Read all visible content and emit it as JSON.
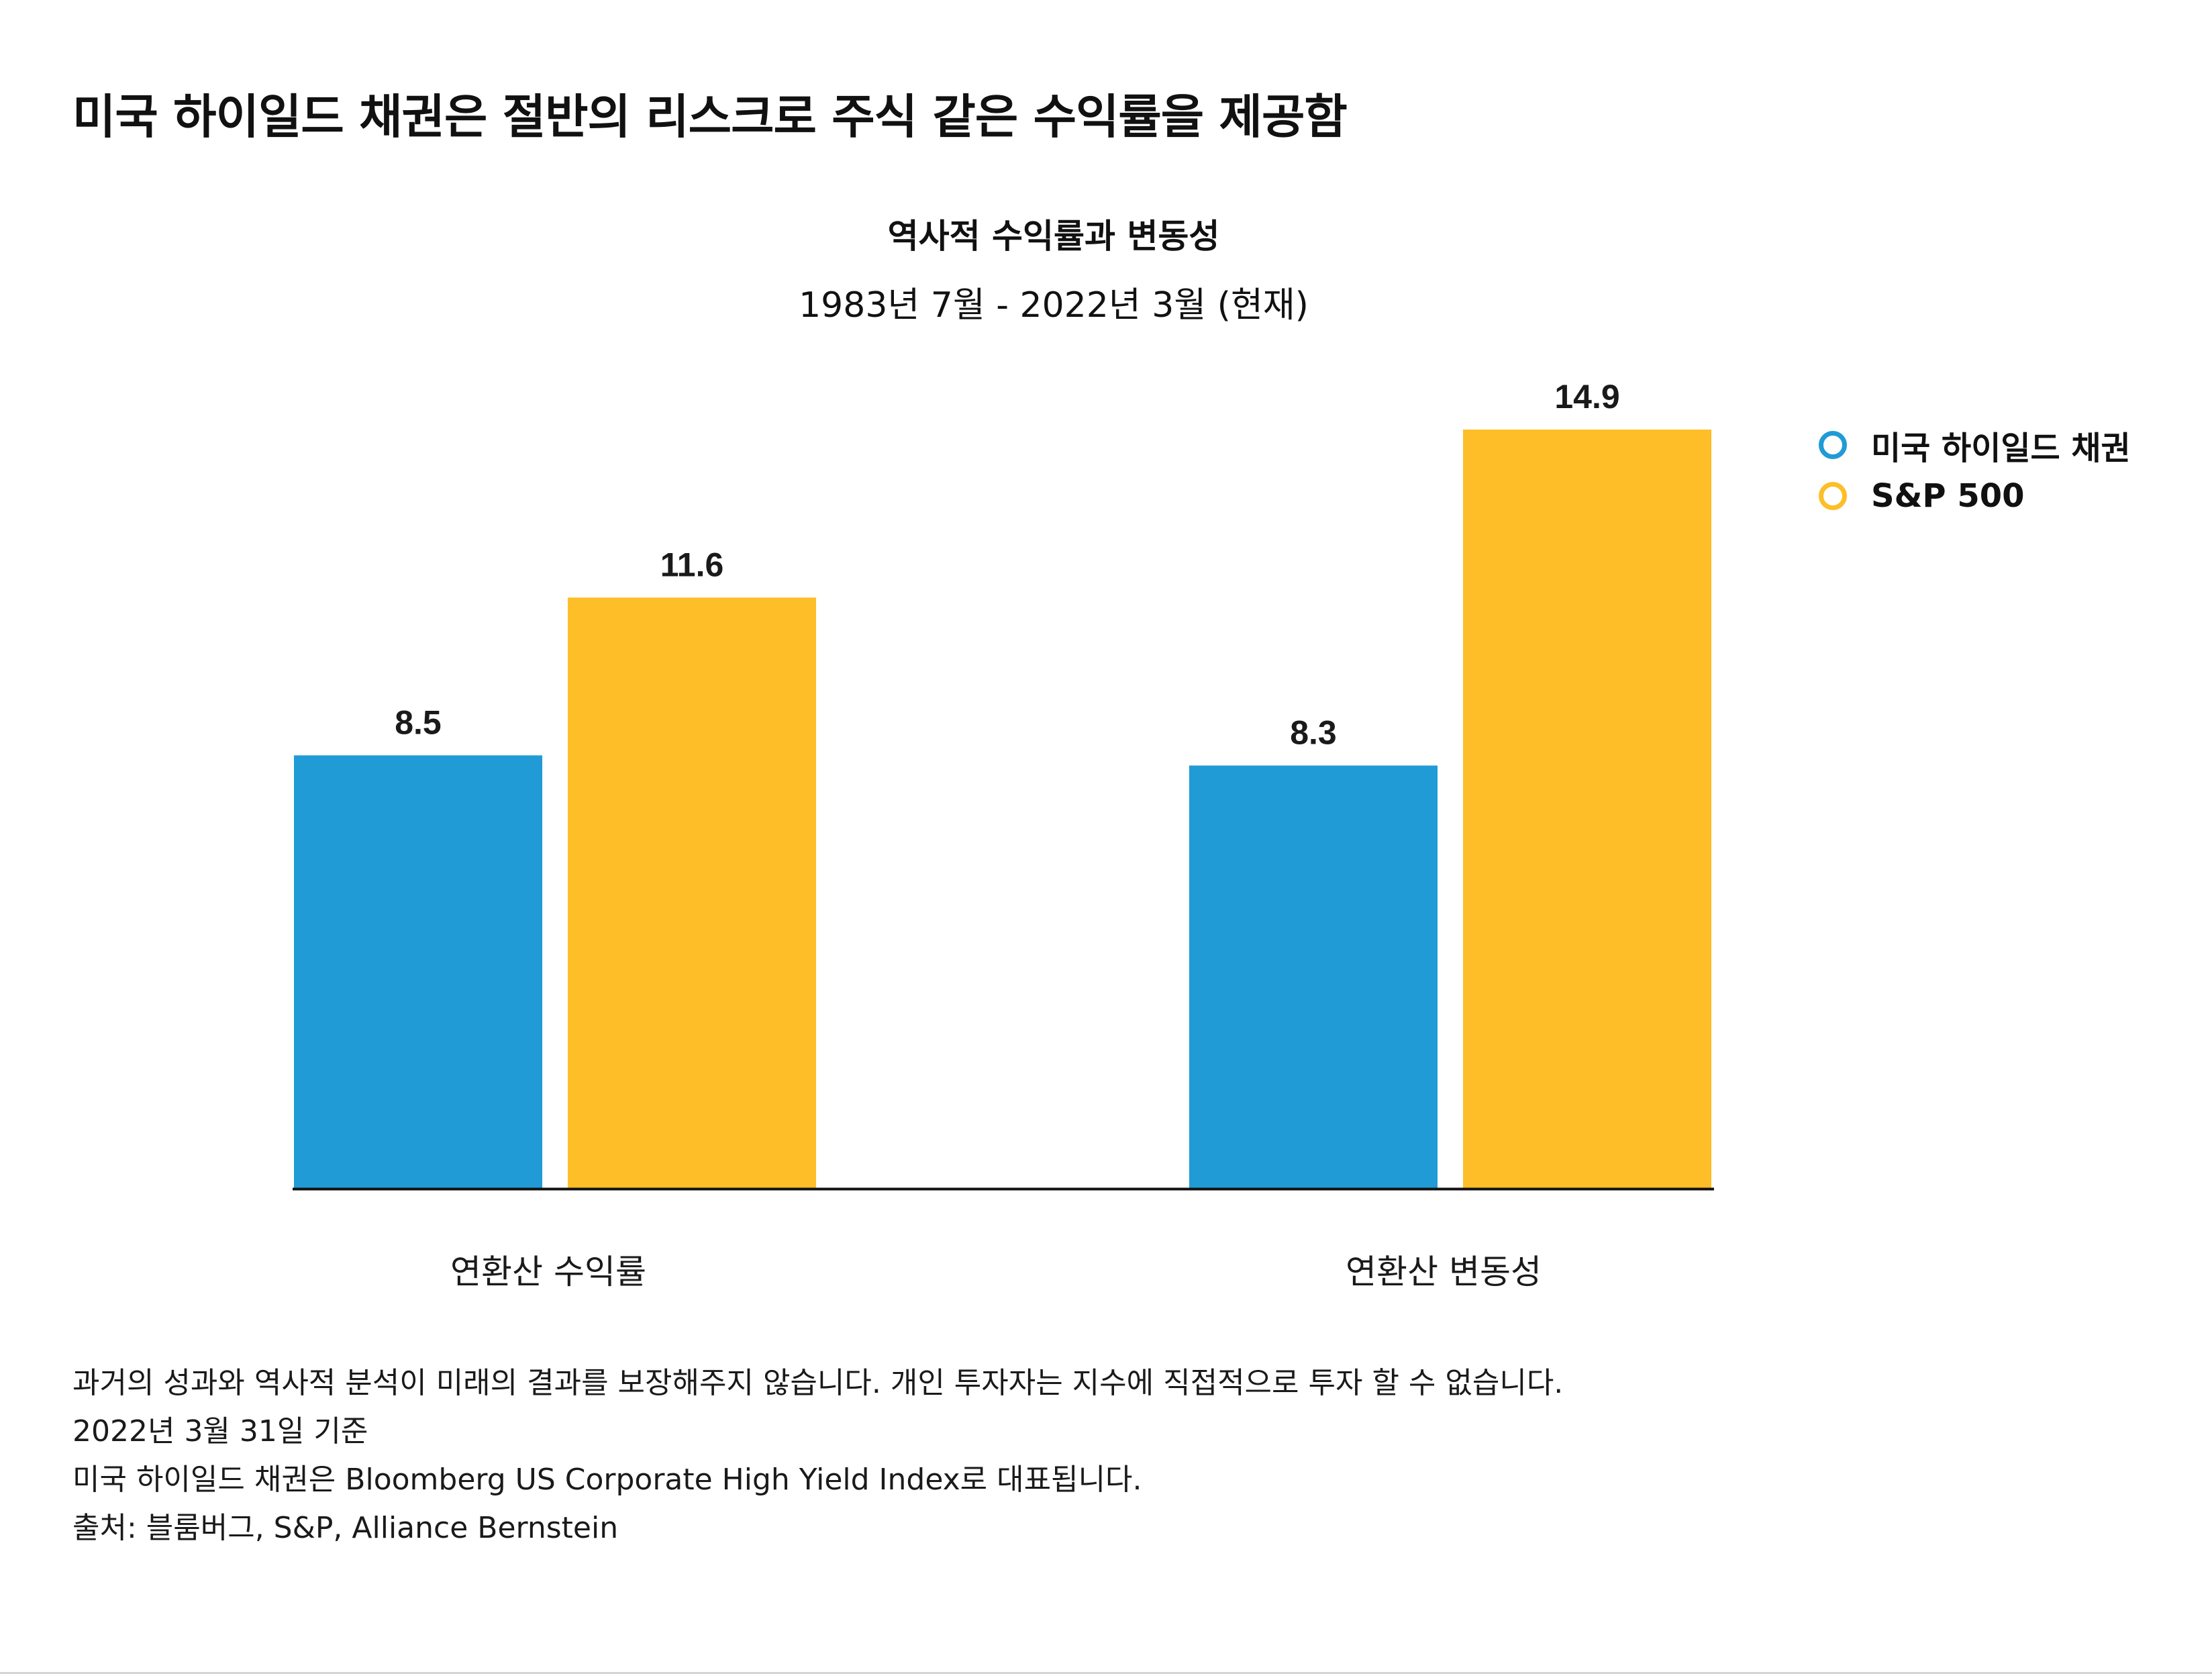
{
  "headline": "미국 하이일드 채권은 절반의 리스크로 주식 같은 수익률을 제공함",
  "colors": {
    "series_1": "#209bd6",
    "series_2": "#fdbe28",
    "axis": "#111111"
  },
  "chart_data": {
    "type": "bar",
    "title": "역사적 수익률과 변동성",
    "subtitle": "1983년 7월 - 2022년 3월 (현재)",
    "categories": [
      "연환산 수익률",
      "연환산 변동성"
    ],
    "series": [
      {
        "name": "미국 하이일드 채권",
        "color": "#209bd6",
        "values": [
          8.5,
          8.3
        ],
        "labels": [
          "8.5",
          "8.3"
        ]
      },
      {
        "name": "S&P 500",
        "color": "#fdbe28",
        "values": [
          11.6,
          14.9
        ],
        "labels": [
          "11.6",
          "14.9"
        ]
      }
    ],
    "ylim": [
      0,
      14.9
    ],
    "grid": false,
    "legend_position": "right"
  },
  "footnotes": [
    "과거의 성과와 역사적 분석이 미래의 결과를 보장해주지 않습니다. 개인 투자자는 지수에 직접적으로 투자 할 수 없습니다.",
    "2022년 3월 31일 기준",
    "미국 하이일드 채권은 Bloomberg US Corporate High Yield Index로 대표됩니다.",
    "출처: 블룸버그, S&P, Alliance Bernstein"
  ]
}
